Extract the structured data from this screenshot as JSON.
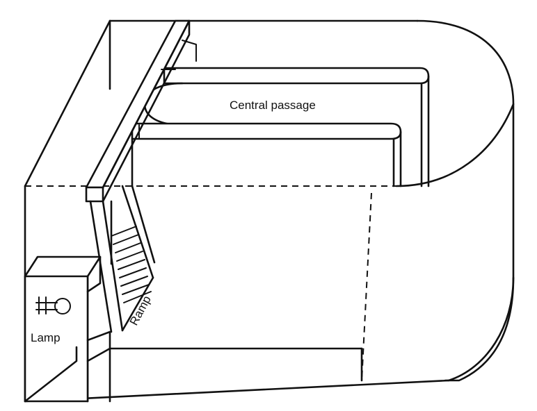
{
  "figure": {
    "labels": {
      "central_passage": "Central passage",
      "ramp": "Ramp",
      "lamp": "Lamp"
    }
  }
}
